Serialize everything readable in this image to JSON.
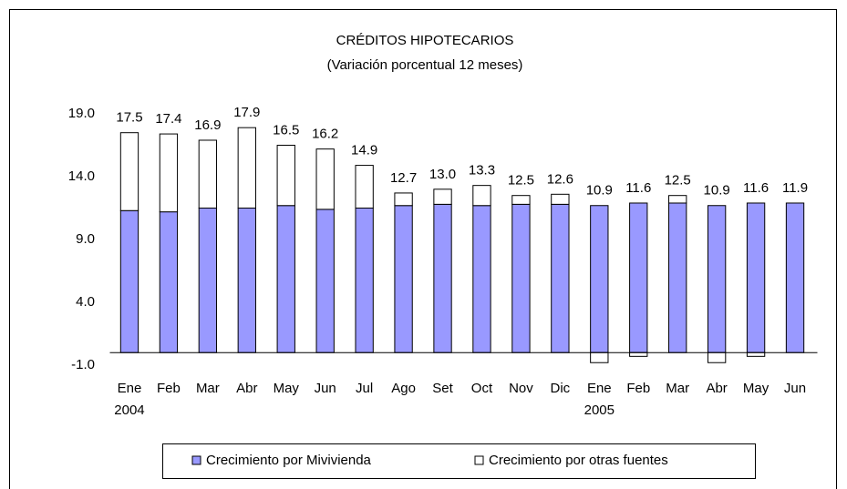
{
  "chart_data": {
    "type": "stacked_bar",
    "title": "CRÉDITOS HIPOTECARIOS",
    "subtitle": "(Variación porcentual 12 meses)",
    "categories": [
      "Ene",
      "Feb",
      "Mar",
      "Abr",
      "May",
      "Jun",
      "Jul",
      "Ago",
      "Set",
      "Oct",
      "Nov",
      "Dic",
      "Ene",
      "Feb",
      "Mar",
      "Abr",
      "May",
      "Jun"
    ],
    "x_sublabels": [
      "2004",
      null,
      null,
      null,
      null,
      null,
      null,
      null,
      null,
      null,
      null,
      null,
      "2005",
      null,
      null,
      null,
      null,
      null
    ],
    "series": [
      {
        "name": "Crecimiento por Mivivienda",
        "color": "#9999ff",
        "values": [
          11.3,
          11.2,
          11.5,
          11.5,
          11.7,
          11.4,
          11.5,
          11.7,
          11.8,
          11.7,
          11.8,
          11.8,
          11.7,
          11.9,
          11.9,
          11.7,
          11.9,
          11.9
        ]
      },
      {
        "name": "Crecimiento por otras fuentes",
        "color": "#ffffff",
        "values": [
          6.2,
          6.2,
          5.4,
          6.4,
          4.8,
          4.8,
          3.4,
          1.0,
          1.2,
          1.6,
          0.7,
          0.8,
          -0.8,
          -0.3,
          0.6,
          -0.8,
          -0.3,
          0.0
        ]
      }
    ],
    "totals": {
      "values": [
        17.5,
        17.4,
        16.9,
        17.9,
        16.5,
        16.2,
        14.9,
        12.7,
        13.0,
        13.3,
        12.5,
        12.6,
        10.9,
        11.6,
        12.5,
        10.9,
        11.6,
        11.9
      ],
      "value_labels": [
        "17.5",
        "17.4",
        "16.9",
        "17.9",
        "16.5",
        "16.2",
        "14.9",
        "12.7",
        "13.0",
        "13.3",
        "12.5",
        "12.6",
        "10.9",
        "11.6",
        "12.5",
        "10.9",
        "11.6",
        "11.9"
      ]
    },
    "ylim": [
      -1,
      19
    ],
    "yticks": [
      {
        "value": -1,
        "label": "-1.0"
      },
      {
        "value": 4,
        "label": "4.0"
      },
      {
        "value": 9,
        "label": "9.0"
      },
      {
        "value": 14,
        "label": "14.0"
      },
      {
        "value": 19,
        "label": "19.0"
      }
    ],
    "grid": false,
    "legend": "bottom"
  }
}
